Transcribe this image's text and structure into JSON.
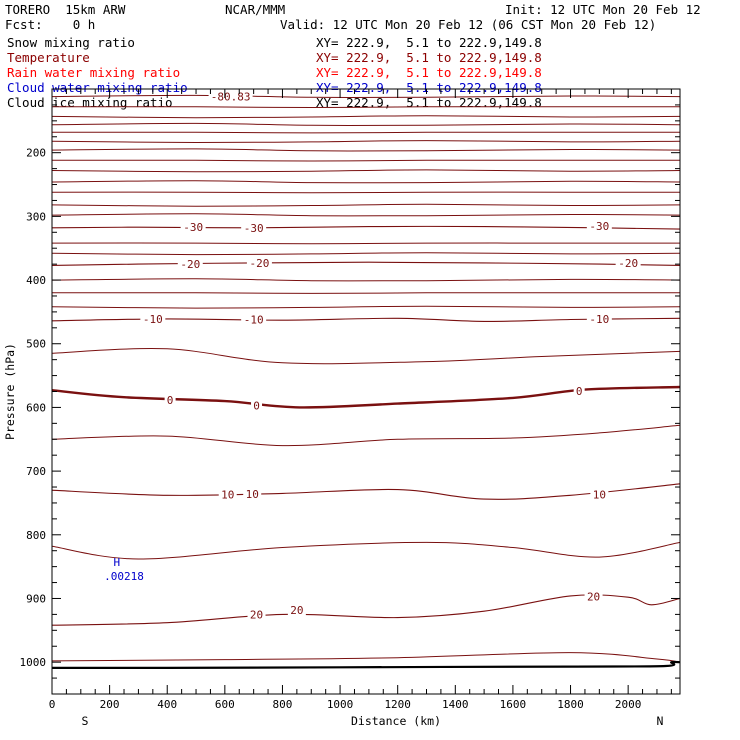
{
  "header": {
    "model": "TORERO  15km ARW",
    "center": "NCAR/MMM",
    "init": "Init: 12 UTC Mon 20 Feb 12",
    "fcst": "Fcst:    0 h",
    "valid": "Valid: 12 UTC Mon 20 Feb 12 (06 CST Mon 20 Feb 12)"
  },
  "fields": [
    {
      "name": "Snow mixing ratio",
      "range": "XY= 222.9,  5.1 to 222.9,149.8",
      "color": "#000000"
    },
    {
      "name": "Temperature",
      "range": "XY= 222.9,  5.1 to 222.9,149.8",
      "color": "#8b0000"
    },
    {
      "name": "Rain water mixing ratio",
      "range": "XY= 222.9,  5.1 to 222.9,149.8",
      "color": "#ff0000"
    },
    {
      "name": "Cloud water mixing ratio",
      "range": "XY= 222.9,  5.1 to 222.9,149.8",
      "color": "#0000cc"
    },
    {
      "name": "Cloud ice mixing ratio",
      "range": "XY= 222.9,  5.1 to 222.9,149.8",
      "color": "#000000"
    }
  ],
  "chart_data": {
    "type": "contour",
    "xlabel": "Distance (km)",
    "ylabel": "Pressure (hPa)",
    "xlim": [
      0,
      2180
    ],
    "ylim": [
      1050,
      100
    ],
    "x_ticks": [
      0,
      200,
      400,
      600,
      800,
      1000,
      1200,
      1400,
      1600,
      1800,
      2000
    ],
    "y_ticks": [
      200,
      300,
      400,
      500,
      600,
      700,
      800,
      900,
      1000
    ],
    "y_tick_labels": [
      "200",
      "300",
      "400",
      "500",
      "600",
      "700",
      "800",
      "900",
      "1000"
    ],
    "x_end_labels": {
      "left": "S",
      "right": "N"
    },
    "contour_color": "#7a1010",
    "temperature_isotherms": [
      {
        "level": -30,
        "points": [
          [
            0,
            318
          ],
          [
            300,
            317
          ],
          [
            700,
            318
          ],
          [
            1100,
            316
          ],
          [
            1500,
            316
          ],
          [
            1900,
            318
          ],
          [
            2180,
            320
          ]
        ]
      },
      {
        "level": -20,
        "points": [
          [
            0,
            377
          ],
          [
            300,
            375
          ],
          [
            700,
            373
          ],
          [
            1100,
            372
          ],
          [
            1500,
            373
          ],
          [
            1900,
            375
          ],
          [
            2180,
            377
          ]
        ]
      },
      {
        "level": -10,
        "points": [
          [
            0,
            464
          ],
          [
            400,
            461
          ],
          [
            800,
            463
          ],
          [
            1200,
            460
          ],
          [
            1500,
            465
          ],
          [
            1800,
            462
          ],
          [
            2180,
            460
          ]
        ]
      },
      {
        "level": 0,
        "points": [
          [
            0,
            573
          ],
          [
            250,
            584
          ],
          [
            600,
            590
          ],
          [
            860,
            600
          ],
          [
            1200,
            594
          ],
          [
            1600,
            585
          ],
          [
            1850,
            572
          ],
          [
            2180,
            568
          ]
        ]
      },
      {
        "level": 10,
        "points": [
          [
            0,
            730
          ],
          [
            400,
            738
          ],
          [
            800,
            735
          ],
          [
            1200,
            729
          ],
          [
            1500,
            744
          ],
          [
            1800,
            738
          ],
          [
            2180,
            720
          ]
        ]
      },
      {
        "level": 20,
        "points": [
          [
            0,
            942
          ],
          [
            400,
            938
          ],
          [
            800,
            925
          ],
          [
            1200,
            930
          ],
          [
            1500,
            920
          ],
          [
            1800,
            896
          ],
          [
            2000,
            898
          ],
          [
            2080,
            910
          ],
          [
            2180,
            900
          ]
        ]
      }
    ],
    "contour_labels": [
      {
        "text": "-30",
        "x": 490,
        "p": 317
      },
      {
        "text": "-30",
        "x": 700,
        "p": 318
      },
      {
        "text": "-30",
        "x": 1900,
        "p": 315
      },
      {
        "text": "-20",
        "x": 480,
        "p": 375
      },
      {
        "text": "-20",
        "x": 720,
        "p": 373
      },
      {
        "text": "-20",
        "x": 2000,
        "p": 373
      },
      {
        "text": "-10",
        "x": 350,
        "p": 461
      },
      {
        "text": "-10",
        "x": 700,
        "p": 462
      },
      {
        "text": "-10",
        "x": 1900,
        "p": 461
      },
      {
        "text": "0",
        "x": 410,
        "p": 588
      },
      {
        "text": "0",
        "x": 710,
        "p": 597
      },
      {
        "text": "0",
        "x": 1830,
        "p": 574
      },
      {
        "text": "10",
        "x": 610,
        "p": 737
      },
      {
        "text": "10",
        "x": 695,
        "p": 736
      },
      {
        "text": "10",
        "x": 1900,
        "p": 737
      },
      {
        "text": "20",
        "x": 710,
        "p": 925
      },
      {
        "text": "20",
        "x": 850,
        "p": 918
      },
      {
        "text": "20",
        "x": 1880,
        "p": 897
      }
    ],
    "annotations": [
      {
        "text": "-80.83",
        "x": 620,
        "p": 112,
        "color": "#7a1010"
      },
      {
        "text": "H",
        "x": 225,
        "p": 843,
        "color": "#0000cc"
      },
      {
        "text": ".00218",
        "x": 250,
        "p": 865,
        "color": "#0000cc"
      }
    ],
    "surface": {
      "points": [
        [
          0,
          1009
        ],
        [
          400,
          1009
        ],
        [
          1000,
          1008
        ],
        [
          1800,
          1007
        ],
        [
          2130,
          1006
        ],
        [
          2150,
          1000
        ],
        [
          2180,
          1000
        ]
      ]
    }
  }
}
